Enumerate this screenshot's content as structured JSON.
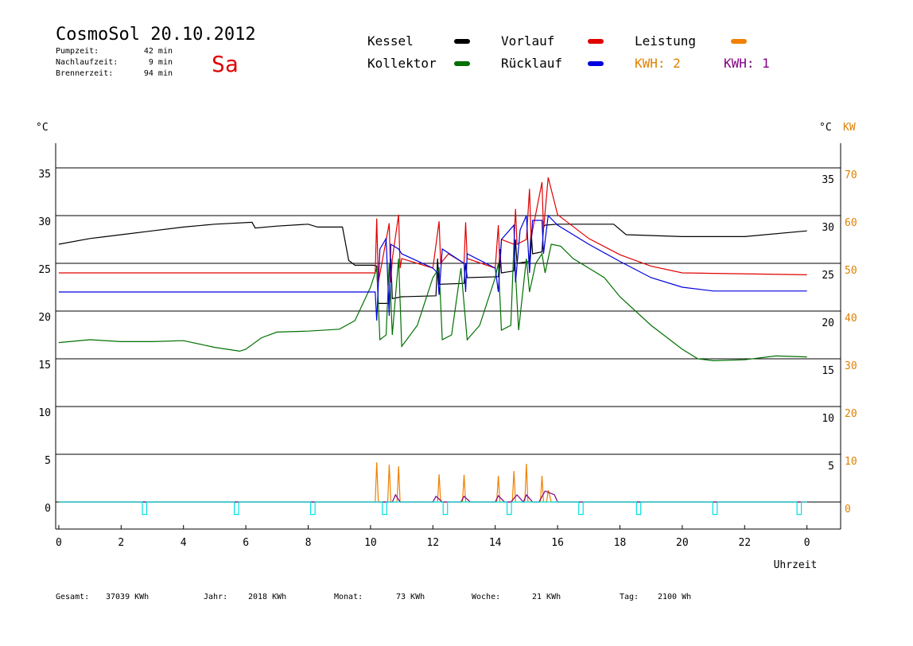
{
  "header": {
    "title": "CosmoSol 20.10.2012",
    "day": "Sa",
    "stats": [
      {
        "label": "Pumpzeit:",
        "value": "42 min"
      },
      {
        "label": "Nachlaufzeit:",
        "value": "9 min"
      },
      {
        "label": "Brennerzeit:",
        "value": "94 min"
      }
    ]
  },
  "footer": [
    {
      "label": "Gesamt:",
      "value": "37039 KWh"
    },
    {
      "label": "Jahr:",
      "value": "2018 KWh"
    },
    {
      "label": "Monat:",
      "value": "73 KWh"
    },
    {
      "label": "Woche:",
      "value": "21 KWh"
    },
    {
      "label": "Tag:",
      "value": "2100 Wh"
    }
  ],
  "chart_data": {
    "type": "line",
    "y_label": "°C",
    "y2_label_c": "°C",
    "y2_label": "KW",
    "x_label": "Uhrzeit",
    "xlim": [
      -0.1,
      25.08
    ],
    "xticks": [
      0,
      2,
      4,
      6,
      8,
      10,
      12,
      14,
      16,
      18,
      20,
      22,
      {
        "value": 24,
        "label": "0"
      }
    ],
    "ylim": [
      -2.83,
      37.58
    ],
    "yticks": [
      0,
      5,
      10,
      15,
      20,
      25,
      30,
      35
    ],
    "yticks_right": [
      5,
      10,
      15,
      20,
      25,
      30,
      35
    ],
    "y2lim": [
      -5.67,
      75.17
    ],
    "y2ticks": [
      0,
      10,
      20,
      30,
      40,
      50,
      60,
      70
    ],
    "grid": true,
    "legend_notes": [
      {
        "text": "KWH: 2",
        "color": "#e08000"
      },
      {
        "text": "KWH: 1",
        "color": "#800080"
      }
    ],
    "series": [
      {
        "name": "Kessel",
        "color": "#000000",
        "x": [
          0,
          1,
          2,
          3,
          4,
          5,
          6.2,
          6.3,
          7,
          8,
          8.3,
          9.1,
          9.3,
          9.5,
          10.1,
          10.2,
          10.25,
          10.3,
          10.6,
          10.65,
          10.7,
          11,
          12.1,
          12.15,
          12.2,
          13,
          13.05,
          13.1,
          14.1,
          14.15,
          14.2,
          14.6,
          14.65,
          14.7,
          15.1,
          15.15,
          15.2,
          15.5,
          15.55,
          15.6,
          16,
          17.8,
          18.2,
          20,
          22,
          24
        ],
        "values": [
          27.0,
          27.6,
          28.0,
          28.4,
          28.8,
          29.1,
          29.3,
          28.7,
          28.9,
          29.1,
          28.8,
          28.8,
          25.3,
          24.8,
          24.8,
          24.7,
          20.8,
          20.8,
          20.8,
          25.5,
          21.3,
          21.5,
          21.6,
          25.5,
          22.8,
          22.9,
          25.0,
          23.5,
          23.6,
          26.5,
          24.0,
          24.2,
          27.5,
          25.0,
          25.2,
          28.5,
          26.0,
          26.2,
          28.8,
          29.0,
          29.1,
          29.1,
          28.0,
          27.8,
          27.8,
          28.4
        ]
      },
      {
        "name": "Kollektor",
        "color": "#007000",
        "x": [
          0,
          1,
          2,
          3,
          4,
          5,
          5.8,
          6,
          6.5,
          7,
          8,
          9,
          9.5,
          10,
          10.2,
          10.3,
          10.5,
          10.6,
          10.7,
          10.9,
          11,
          11.5,
          12,
          12.2,
          12.3,
          12.6,
          12.9,
          13.1,
          13.5,
          14,
          14.1,
          14.2,
          14.5,
          14.6,
          14.75,
          15,
          15.1,
          15.3,
          15.5,
          15.6,
          15.8,
          16.1,
          16.5,
          17,
          17.5,
          18,
          19,
          20,
          20.5,
          21,
          22,
          23,
          24
        ],
        "values": [
          16.7,
          17.0,
          16.8,
          16.8,
          16.9,
          16.2,
          15.8,
          16.0,
          17.2,
          17.8,
          17.9,
          18.1,
          19.0,
          22.5,
          24.5,
          17.0,
          17.5,
          25.0,
          17.5,
          25.5,
          16.3,
          18.5,
          23.5,
          24.5,
          17.0,
          17.5,
          24.5,
          17.0,
          18.5,
          23.5,
          25.0,
          18.0,
          18.5,
          27.0,
          18.0,
          25.5,
          22.0,
          25.0,
          26.0,
          24.0,
          27.0,
          26.8,
          25.5,
          24.5,
          23.5,
          21.5,
          18.5,
          16.0,
          15.0,
          14.8,
          14.9,
          15.3,
          15.2
        ]
      },
      {
        "name": "Vorlauf",
        "color": "#e00000",
        "x": [
          0,
          10.15,
          10.2,
          10.25,
          10.6,
          10.65,
          10.7,
          10.9,
          10.95,
          11,
          12,
          12.2,
          12.25,
          12.5,
          13,
          13.05,
          13.1,
          14,
          14.1,
          14.15,
          14.2,
          14.6,
          14.65,
          14.7,
          15,
          15.1,
          15.15,
          15.2,
          15.5,
          15.55,
          15.7,
          16,
          17,
          18,
          19,
          20,
          24
        ],
        "values": [
          24.0,
          24.0,
          29.7,
          23.0,
          29.2,
          23.0,
          25.5,
          30.1,
          24.5,
          25.5,
          24.5,
          29.4,
          25.0,
          26.0,
          25.0,
          29.3,
          25.5,
          24.5,
          29.0,
          24.5,
          27.5,
          27.0,
          30.7,
          27.0,
          27.5,
          32.8,
          27.5,
          28.5,
          33.5,
          28.5,
          34.0,
          30.1,
          27.6,
          25.9,
          24.7,
          24.0,
          23.8
        ]
      },
      {
        "name": "Rücklauf",
        "color": "#0000e0",
        "x": [
          0,
          10.15,
          10.2,
          10.3,
          10.5,
          10.6,
          10.65,
          10.9,
          11,
          12,
          12.15,
          12.2,
          12.3,
          13,
          13.05,
          13.1,
          14,
          14.1,
          14.2,
          14.6,
          14.65,
          14.8,
          15,
          15.1,
          15.2,
          15.5,
          15.55,
          15.7,
          16,
          17,
          18,
          19,
          20,
          21,
          24
        ],
        "values": [
          22.0,
          22.0,
          19.0,
          26.5,
          27.6,
          19.5,
          27.0,
          26.5,
          26.0,
          24.5,
          24.0,
          21.7,
          26.5,
          25.0,
          22.0,
          26.0,
          24.5,
          22.0,
          27.5,
          29.0,
          23.0,
          28.5,
          30.0,
          24.0,
          29.5,
          29.5,
          26.0,
          30.0,
          29.0,
          27.0,
          25.2,
          23.5,
          22.5,
          22.1,
          22.1
        ]
      },
      {
        "name": "Leistung",
        "color": "#f08000",
        "axis": "y2",
        "x": [
          0,
          10.15,
          10.2,
          10.25,
          10.55,
          10.6,
          10.65,
          10.85,
          10.9,
          10.95,
          12.15,
          12.2,
          12.25,
          12.95,
          13,
          13.05,
          14.05,
          14.1,
          14.15,
          14.55,
          14.6,
          14.65,
          14.95,
          15,
          15.05,
          15.45,
          15.5,
          15.55,
          15.65,
          15.7,
          15.8,
          24
        ],
        "values": [
          0,
          0,
          8.3,
          0,
          0,
          7.8,
          0,
          0,
          7.5,
          0,
          0,
          5.8,
          0,
          0,
          5.7,
          0,
          0,
          5.5,
          0,
          0,
          6.5,
          0,
          0,
          8.0,
          0,
          0,
          5.5,
          0,
          0,
          2.5,
          0,
          0
        ]
      },
      {
        "color": "#800080",
        "axis": "y2",
        "x": [
          0,
          10.7,
          10.8,
          10.95,
          12.0,
          12.1,
          12.3,
          12.9,
          13.0,
          13.2,
          14.0,
          14.1,
          14.3,
          14.5,
          14.7,
          14.9,
          15.0,
          15.2,
          15.4,
          15.6,
          15.9,
          16.0,
          24
        ],
        "values": [
          0,
          0,
          1.5,
          0,
          0,
          1.2,
          0,
          0,
          1.2,
          0,
          0,
          1.3,
          0,
          0,
          1.5,
          0,
          1.5,
          0,
          0,
          2.3,
          1.5,
          0,
          0
        ]
      },
      {
        "color": "#00e0e0",
        "x": [
          0,
          2.68,
          2.68,
          2.82,
          2.82,
          5.63,
          5.63,
          5.77,
          5.77,
          8.08,
          8.08,
          8.22,
          8.22,
          10.38,
          10.38,
          10.52,
          10.52,
          12.33,
          12.33,
          12.47,
          12.47,
          14.38,
          14.38,
          14.52,
          14.52,
          16.68,
          16.68,
          16.82,
          16.82,
          18.53,
          18.53,
          18.67,
          18.67,
          20.98,
          20.98,
          21.12,
          21.12,
          23.68,
          23.68,
          23.82,
          23.82,
          24
        ],
        "values": [
          0,
          0,
          -1.3,
          -1.3,
          0,
          0,
          -1.3,
          -1.3,
          0,
          0,
          -1.3,
          -1.3,
          0,
          0,
          -1.3,
          -1.3,
          0,
          0,
          -1.3,
          -1.3,
          0,
          0,
          -1.3,
          -1.3,
          0,
          0,
          -1.3,
          -1.3,
          0,
          0,
          -1.3,
          -1.3,
          0,
          0,
          -1.3,
          -1.3,
          0,
          0,
          -1.3,
          -1.3,
          0,
          0
        ]
      }
    ]
  }
}
